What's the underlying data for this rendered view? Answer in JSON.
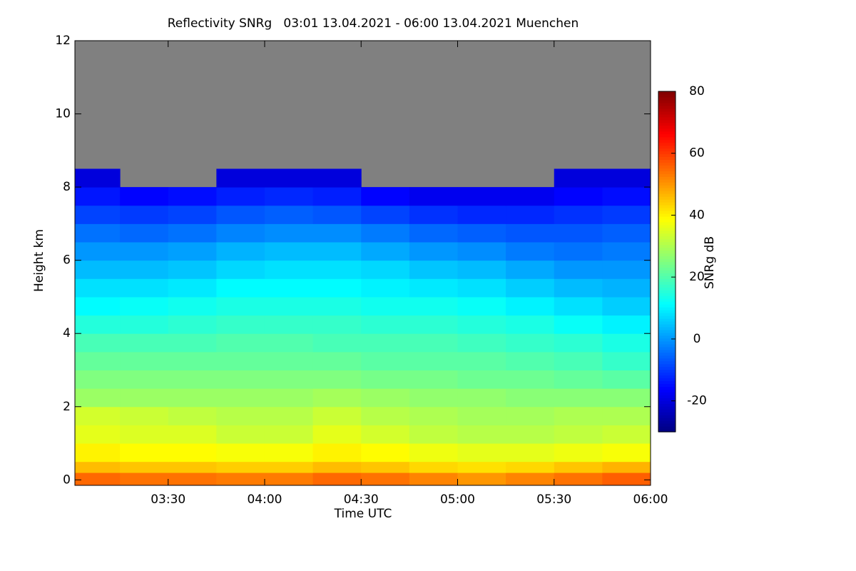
{
  "chart_data": {
    "type": "heatmap",
    "title": "Reflectivity SNRg   03:01 13.04.2021 - 06:00 13.04.2021 Muenchen",
    "xlabel": "Time UTC",
    "ylabel": "Height km",
    "colorbar_label": "SNRg dB",
    "xlim": [
      3.0167,
      6.0
    ],
    "xticks": [
      {
        "value": 3.5,
        "label": "03:30"
      },
      {
        "value": 4.0,
        "label": "04:00"
      },
      {
        "value": 4.5,
        "label": "04:30"
      },
      {
        "value": 5.0,
        "label": "05:00"
      },
      {
        "value": 5.5,
        "label": "05:30"
      },
      {
        "value": 6.0,
        "label": "06:00"
      }
    ],
    "ylim": [
      -0.15,
      12
    ],
    "yticks": [
      0,
      2,
      4,
      6,
      8,
      10,
      12
    ],
    "clim": [
      -30,
      80
    ],
    "cticks": [
      -20,
      0,
      20,
      40,
      60,
      80
    ],
    "colormap": "jet",
    "nodata_color": "#808080",
    "x_edges": [
      3.0167,
      3.25,
      3.5,
      3.75,
      4.0,
      4.25,
      4.5,
      4.75,
      5.0,
      5.25,
      5.5,
      5.75,
      6.0
    ],
    "y_edges": [
      -0.15,
      0.2,
      0.5,
      1,
      1.5,
      2,
      2.5,
      3,
      3.5,
      4,
      4.5,
      5,
      5.5,
      6,
      6.5,
      7,
      7.5,
      8,
      8.5,
      12
    ],
    "z": [
      [
        55,
        54,
        54,
        53,
        53,
        55,
        54,
        52,
        50,
        52,
        54,
        56
      ],
      [
        46,
        45,
        45,
        44,
        44,
        46,
        45,
        43,
        42,
        43,
        45,
        47
      ],
      [
        40,
        39,
        39,
        38,
        38,
        40,
        39,
        37,
        36,
        36,
        37,
        38
      ],
      [
        36,
        35,
        35,
        33,
        33,
        36,
        34,
        32,
        31,
        31,
        32,
        33
      ],
      [
        34,
        33,
        32,
        31,
        31,
        33,
        31,
        30,
        29,
        29,
        30,
        30
      ],
      [
        28,
        28,
        28,
        28,
        28,
        29,
        28,
        27,
        27,
        26,
        26,
        26
      ],
      [
        25,
        25,
        25,
        25,
        25,
        25,
        24,
        24,
        23,
        23,
        22,
        21
      ],
      [
        22,
        22,
        22,
        22,
        22,
        22,
        21,
        21,
        21,
        20,
        19,
        17
      ],
      [
        19,
        19,
        19,
        20,
        20,
        19,
        19,
        19,
        18,
        17,
        16,
        14
      ],
      [
        15,
        15,
        16,
        17,
        17,
        17,
        16,
        16,
        15,
        14,
        12,
        10
      ],
      [
        11,
        12,
        13,
        14,
        14,
        14,
        13,
        13,
        12,
        10,
        8,
        6
      ],
      [
        8,
        8,
        9,
        11,
        11,
        11,
        10,
        9,
        8,
        6,
        4,
        3
      ],
      [
        4,
        4,
        5,
        7,
        8,
        8,
        7,
        5,
        4,
        2,
        0,
        0
      ],
      [
        0,
        0,
        1,
        3,
        4,
        4,
        2,
        0,
        -1,
        -3,
        -4,
        -3
      ],
      [
        -4,
        -5,
        -4,
        -2,
        -1,
        -1,
        -3,
        -5,
        -6,
        -7,
        -7,
        -6
      ],
      [
        -9,
        -10,
        -9,
        -7,
        -6,
        -7,
        -9,
        -11,
        -12,
        -12,
        -11,
        -10
      ],
      [
        -14,
        -16,
        -15,
        -13,
        -12,
        -13,
        -16,
        -18,
        -18,
        -18,
        -16,
        -15
      ],
      [
        -20,
        null,
        null,
        -20,
        -20,
        -20,
        null,
        null,
        null,
        null,
        -20,
        -20
      ],
      [
        null,
        null,
        null,
        null,
        null,
        null,
        null,
        null,
        null,
        null,
        null,
        null
      ]
    ]
  }
}
